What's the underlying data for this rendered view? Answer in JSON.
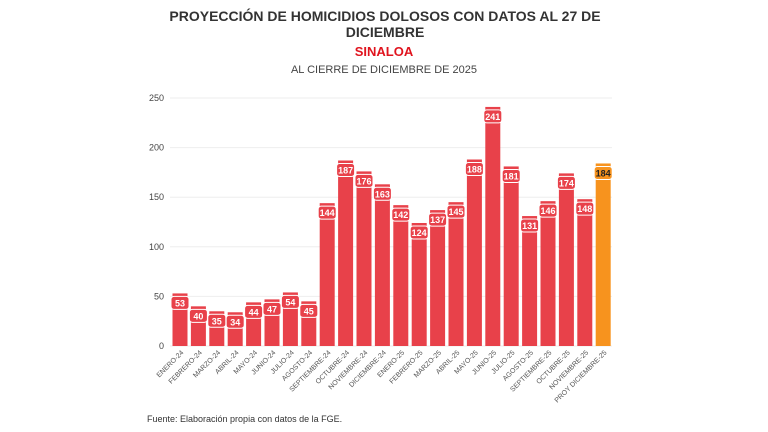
{
  "title": "PROYECCIÓN DE HOMICIDIOS DOLOSOS CON DATOS AL 27 DE DICIEMBRE",
  "subtitle": "SINALOA",
  "subtitle2": "AL CIERRE DE DICIEMBRE DE 2025",
  "source": "Fuente: Elaboración propia con datos de la FGE.",
  "chart_data": {
    "type": "bar",
    "title": "PROYECCIÓN DE HOMICIDIOS DOLOSOS CON DATOS AL 27 DE DICIEMBRE",
    "categories": [
      "ENERO-24",
      "FEBRERO-24",
      "MARZO-24",
      "ABRIL-24",
      "MAYO-24",
      "JUNIO-24",
      "JULIO-24",
      "AGOSTO-24",
      "SEPTIEMBRE-24",
      "OCTUBRE-24",
      "NOVIEMBRE-24",
      "DICIEMBRE-24",
      "ENERO-25",
      "FEBRERO-25",
      "MARZO-25",
      "ABRIL-25",
      "MAYO-25",
      "JUNIO-25",
      "JULIO-25",
      "AGOSTO-25",
      "SEPTIEMBRE-25",
      "OCTUBRE-25",
      "NOVIEMBRE-25",
      "PROY DICIEMBRE-25"
    ],
    "values": [
      53,
      40,
      35,
      34,
      44,
      47,
      54,
      45,
      144,
      187,
      176,
      163,
      142,
      124,
      137,
      145,
      188,
      241,
      181,
      131,
      146,
      174,
      148,
      184
    ],
    "ylim": [
      0,
      250
    ],
    "yticks": [
      0,
      50,
      100,
      150,
      200,
      250
    ],
    "grid": true,
    "colors": {
      "bar": "#e8414a",
      "projection": "#f7931e"
    }
  }
}
